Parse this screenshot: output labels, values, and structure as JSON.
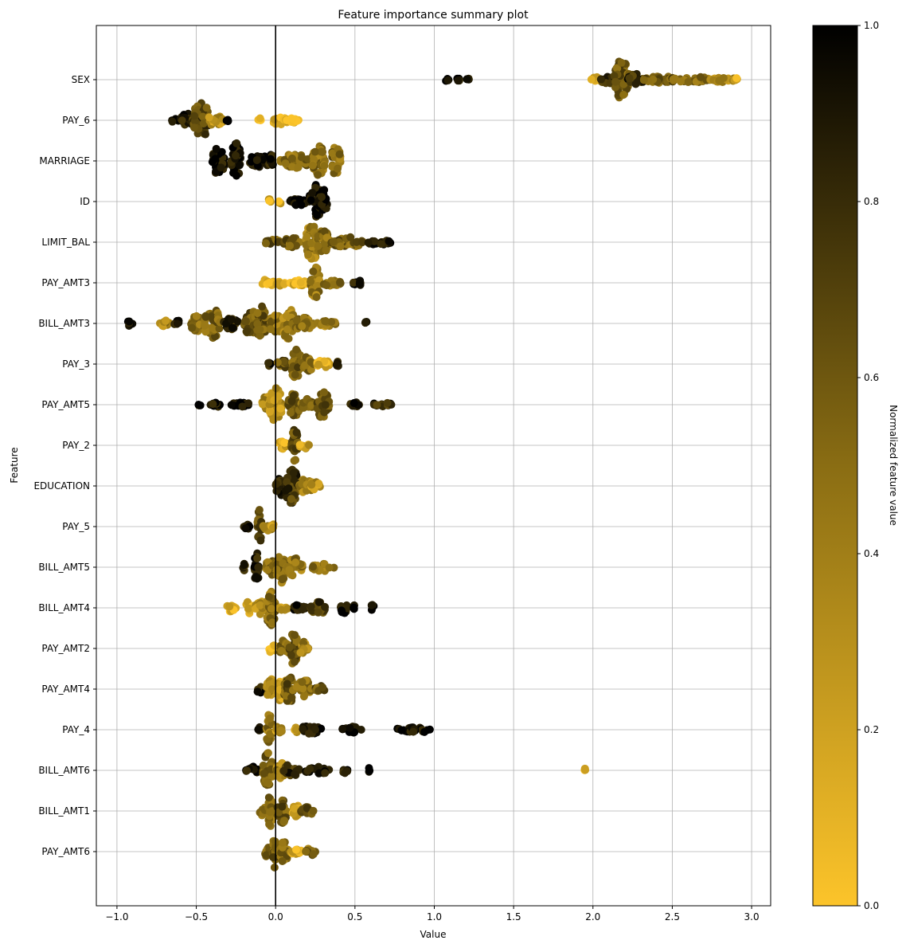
{
  "chart_data": {
    "type": "scatter",
    "subtype": "beeswarm",
    "title": "Feature importance summary plot",
    "xlabel": "Value",
    "ylabel": "Feature",
    "xlim": [
      -1.13,
      3.12
    ],
    "xticks": [
      -1.0,
      -0.5,
      0.0,
      0.5,
      1.0,
      1.5,
      2.0,
      2.5,
      3.0
    ],
    "xtick_labels": [
      "−1.0",
      "−0.5",
      "0.0",
      "0.5",
      "1.0",
      "1.5",
      "2.0",
      "2.5",
      "3.0"
    ],
    "grid": true,
    "zero_line": 0.0,
    "colorbar": {
      "label": "Normalized feature value",
      "range": [
        0.0,
        1.0
      ],
      "ticks": [
        0.0,
        0.2,
        0.4,
        0.6,
        0.8,
        1.0
      ],
      "tick_labels": [
        "0.0",
        "0.2",
        "0.4",
        "0.6",
        "0.8",
        "1.0"
      ],
      "low_color": "#fcc42a",
      "mid_color": "#8a6d13",
      "high_color": "#000000"
    },
    "features": [
      {
        "name": "SEX",
        "clusters": [
          {
            "x": 1.08,
            "c": 0.95,
            "w": 0.01,
            "h": 0.1
          },
          {
            "x": 1.15,
            "c": 0.95,
            "w": 0.01,
            "h": 0.1
          },
          {
            "x": 1.21,
            "c": 0.95,
            "w": 0.01,
            "h": 0.1
          },
          {
            "x": 2.02,
            "c": 0.2,
            "w": 0.03,
            "h": 0.15
          },
          {
            "x": 2.1,
            "c": 0.8,
            "w": 0.05,
            "h": 0.25
          },
          {
            "x": 2.18,
            "c": 0.6,
            "w": 0.05,
            "h": 0.95
          },
          {
            "x": 2.28,
            "c": 0.8,
            "w": 0.06,
            "h": 0.3
          },
          {
            "x": 2.42,
            "c": 0.6,
            "w": 0.1,
            "h": 0.18
          },
          {
            "x": 2.62,
            "c": 0.5,
            "w": 0.12,
            "h": 0.15
          },
          {
            "x": 2.82,
            "c": 0.3,
            "w": 0.08,
            "h": 0.12
          },
          {
            "x": 2.9,
            "c": 0.1,
            "w": 0.01,
            "h": 0.1
          }
        ]
      },
      {
        "name": "PAY_6",
        "clusters": [
          {
            "x": -0.62,
            "c": 0.95,
            "w": 0.04,
            "h": 0.12
          },
          {
            "x": -0.55,
            "c": 0.9,
            "w": 0.05,
            "h": 0.35
          },
          {
            "x": -0.47,
            "c": 0.7,
            "w": 0.05,
            "h": 0.9
          },
          {
            "x": -0.38,
            "c": 0.3,
            "w": 0.05,
            "h": 0.25
          },
          {
            "x": -0.3,
            "c": 0.95,
            "w": 0.01,
            "h": 0.1
          },
          {
            "x": -0.1,
            "c": 0.1,
            "w": 0.01,
            "h": 0.1
          },
          {
            "x": 0.03,
            "c": 0.15,
            "w": 0.05,
            "h": 0.25
          },
          {
            "x": 0.11,
            "c": 0.1,
            "w": 0.04,
            "h": 0.12
          }
        ]
      },
      {
        "name": "MARRIAGE",
        "clusters": [
          {
            "x": -0.36,
            "c": 0.95,
            "w": 0.04,
            "h": 0.7
          },
          {
            "x": -0.25,
            "c": 0.95,
            "w": 0.03,
            "h": 0.9
          },
          {
            "x": -0.1,
            "c": 0.95,
            "w": 0.07,
            "h": 0.3
          },
          {
            "x": -0.03,
            "c": 0.9,
            "w": 0.02,
            "h": 0.3
          },
          {
            "x": 0.13,
            "c": 0.5,
            "w": 0.1,
            "h": 0.35
          },
          {
            "x": 0.27,
            "c": 0.5,
            "w": 0.04,
            "h": 0.75
          },
          {
            "x": 0.38,
            "c": 0.5,
            "w": 0.03,
            "h": 0.7
          }
        ]
      },
      {
        "name": "ID",
        "clusters": [
          {
            "x": -0.04,
            "c": 0.15,
            "w": 0.01,
            "h": 0.12
          },
          {
            "x": 0.03,
            "c": 0.15,
            "w": 0.01,
            "h": 0.12
          },
          {
            "x": 0.14,
            "c": 0.95,
            "w": 0.05,
            "h": 0.2
          },
          {
            "x": 0.25,
            "c": 0.95,
            "w": 0.04,
            "h": 0.85
          },
          {
            "x": 0.3,
            "c": 0.95,
            "w": 0.03,
            "h": 0.6
          }
        ]
      },
      {
        "name": "LIMIT_BAL",
        "clusters": [
          {
            "x": -0.02,
            "c": 0.6,
            "w": 0.05,
            "h": 0.15
          },
          {
            "x": 0.1,
            "c": 0.6,
            "w": 0.05,
            "h": 0.25
          },
          {
            "x": 0.23,
            "c": 0.4,
            "w": 0.04,
            "h": 0.9
          },
          {
            "x": 0.3,
            "c": 0.5,
            "w": 0.04,
            "h": 0.6
          },
          {
            "x": 0.45,
            "c": 0.55,
            "w": 0.1,
            "h": 0.25
          },
          {
            "x": 0.65,
            "c": 0.95,
            "w": 0.08,
            "h": 0.12
          }
        ]
      },
      {
        "name": "PAY_AMT3",
        "clusters": [
          {
            "x": -0.05,
            "c": 0.1,
            "w": 0.04,
            "h": 0.2
          },
          {
            "x": 0.03,
            "c": 0.15,
            "w": 0.03,
            "h": 0.15
          },
          {
            "x": 0.14,
            "c": 0.1,
            "w": 0.06,
            "h": 0.15
          },
          {
            "x": 0.25,
            "c": 0.45,
            "w": 0.03,
            "h": 0.8
          },
          {
            "x": 0.35,
            "c": 0.55,
            "w": 0.06,
            "h": 0.15
          },
          {
            "x": 0.52,
            "c": 0.9,
            "w": 0.04,
            "h": 0.12
          }
        ]
      },
      {
        "name": "BILL_AMT3",
        "clusters": [
          {
            "x": -0.92,
            "c": 0.95,
            "w": 0.02,
            "h": 0.15
          },
          {
            "x": -0.7,
            "c": 0.4,
            "w": 0.03,
            "h": 0.15
          },
          {
            "x": -0.62,
            "c": 0.9,
            "w": 0.02,
            "h": 0.15
          },
          {
            "x": -0.5,
            "c": 0.5,
            "w": 0.04,
            "h": 0.4
          },
          {
            "x": -0.4,
            "c": 0.55,
            "w": 0.05,
            "h": 0.8
          },
          {
            "x": -0.28,
            "c": 0.8,
            "w": 0.05,
            "h": 0.3
          },
          {
            "x": -0.15,
            "c": 0.6,
            "w": 0.05,
            "h": 0.6
          },
          {
            "x": -0.09,
            "c": 0.6,
            "w": 0.03,
            "h": 0.9
          },
          {
            "x": 0.0,
            "c": 0.45,
            "w": 0.04,
            "h": 0.5
          },
          {
            "x": 0.08,
            "c": 0.4,
            "w": 0.04,
            "h": 0.75
          },
          {
            "x": 0.17,
            "c": 0.5,
            "w": 0.07,
            "h": 0.3
          },
          {
            "x": 0.32,
            "c": 0.4,
            "w": 0.06,
            "h": 0.15
          },
          {
            "x": 0.57,
            "c": 0.9,
            "w": 0.005,
            "h": 0.1
          }
        ]
      },
      {
        "name": "PAY_3",
        "clusters": [
          {
            "x": -0.04,
            "c": 0.9,
            "w": 0.01,
            "h": 0.1
          },
          {
            "x": 0.04,
            "c": 0.6,
            "w": 0.03,
            "h": 0.25
          },
          {
            "x": 0.13,
            "c": 0.6,
            "w": 0.03,
            "h": 0.9
          },
          {
            "x": 0.2,
            "c": 0.5,
            "w": 0.04,
            "h": 0.35
          },
          {
            "x": 0.3,
            "c": 0.15,
            "w": 0.04,
            "h": 0.2
          },
          {
            "x": 0.38,
            "c": 0.8,
            "w": 0.02,
            "h": 0.15
          }
        ]
      },
      {
        "name": "PAY_AMT5",
        "clusters": [
          {
            "x": -0.48,
            "c": 0.95,
            "w": 0.01,
            "h": 0.12
          },
          {
            "x": -0.38,
            "c": 0.95,
            "w": 0.03,
            "h": 0.15
          },
          {
            "x": -0.22,
            "c": 0.95,
            "w": 0.06,
            "h": 0.12
          },
          {
            "x": -0.05,
            "c": 0.35,
            "w": 0.04,
            "h": 0.45
          },
          {
            "x": 0.0,
            "c": 0.3,
            "w": 0.04,
            "h": 0.9
          },
          {
            "x": 0.12,
            "c": 0.6,
            "w": 0.04,
            "h": 0.6
          },
          {
            "x": 0.2,
            "c": 0.55,
            "w": 0.04,
            "h": 0.3
          },
          {
            "x": 0.3,
            "c": 0.6,
            "w": 0.04,
            "h": 0.7
          },
          {
            "x": 0.5,
            "c": 0.9,
            "w": 0.03,
            "h": 0.12
          },
          {
            "x": 0.67,
            "c": 0.8,
            "w": 0.06,
            "h": 0.12
          }
        ]
      },
      {
        "name": "PAY_2",
        "clusters": [
          {
            "x": 0.04,
            "c": 0.15,
            "w": 0.04,
            "h": 0.2
          },
          {
            "x": 0.12,
            "c": 0.65,
            "w": 0.02,
            "h": 0.9
          },
          {
            "x": 0.18,
            "c": 0.2,
            "w": 0.03,
            "h": 0.2
          }
        ]
      },
      {
        "name": "EDUCATION",
        "clusters": [
          {
            "x": 0.04,
            "c": 0.8,
            "w": 0.04,
            "h": 0.5
          },
          {
            "x": 0.1,
            "c": 0.75,
            "w": 0.04,
            "h": 0.9
          },
          {
            "x": 0.2,
            "c": 0.4,
            "w": 0.05,
            "h": 0.4
          },
          {
            "x": 0.25,
            "c": 0.3,
            "w": 0.03,
            "h": 0.2
          }
        ]
      },
      {
        "name": "PAY_5",
        "clusters": [
          {
            "x": -0.18,
            "c": 0.9,
            "w": 0.02,
            "h": 0.2
          },
          {
            "x": -0.1,
            "c": 0.7,
            "w": 0.015,
            "h": 0.9
          },
          {
            "x": -0.05,
            "c": 0.5,
            "w": 0.03,
            "h": 0.25
          },
          {
            "x": -0.02,
            "c": 0.15,
            "w": 0.01,
            "h": 0.15
          }
        ]
      },
      {
        "name": "BILL_AMT5",
        "clusters": [
          {
            "x": -0.2,
            "c": 0.8,
            "w": 0.01,
            "h": 0.2
          },
          {
            "x": -0.12,
            "c": 0.85,
            "w": 0.015,
            "h": 0.85
          },
          {
            "x": -0.03,
            "c": 0.5,
            "w": 0.03,
            "h": 0.5
          },
          {
            "x": 0.03,
            "c": 0.5,
            "w": 0.03,
            "h": 0.8
          },
          {
            "x": 0.12,
            "c": 0.45,
            "w": 0.05,
            "h": 0.45
          },
          {
            "x": 0.3,
            "c": 0.5,
            "w": 0.07,
            "h": 0.2
          }
        ]
      },
      {
        "name": "BILL_AMT4",
        "clusters": [
          {
            "x": -0.28,
            "c": 0.1,
            "w": 0.03,
            "h": 0.2
          },
          {
            "x": -0.17,
            "c": 0.15,
            "w": 0.03,
            "h": 0.3
          },
          {
            "x": -0.1,
            "c": 0.3,
            "w": 0.03,
            "h": 0.4
          },
          {
            "x": -0.03,
            "c": 0.5,
            "w": 0.03,
            "h": 0.9
          },
          {
            "x": 0.05,
            "c": 0.2,
            "w": 0.03,
            "h": 0.12
          },
          {
            "x": 0.15,
            "c": 0.9,
            "w": 0.04,
            "h": 0.2
          },
          {
            "x": 0.27,
            "c": 0.75,
            "w": 0.05,
            "h": 0.3
          },
          {
            "x": 0.43,
            "c": 0.95,
            "w": 0.02,
            "h": 0.3
          },
          {
            "x": 0.5,
            "c": 0.95,
            "w": 0.01,
            "h": 0.15
          },
          {
            "x": 0.61,
            "c": 0.95,
            "w": 0.01,
            "h": 0.15
          }
        ]
      },
      {
        "name": "PAY_AMT2",
        "clusters": [
          {
            "x": -0.02,
            "c": 0.1,
            "w": 0.02,
            "h": 0.25
          },
          {
            "x": 0.05,
            "c": 0.55,
            "w": 0.03,
            "h": 0.4
          },
          {
            "x": 0.11,
            "c": 0.6,
            "w": 0.03,
            "h": 0.8
          },
          {
            "x": 0.18,
            "c": 0.4,
            "w": 0.03,
            "h": 0.35
          }
        ]
      },
      {
        "name": "PAY_AMT4",
        "clusters": [
          {
            "x": -0.1,
            "c": 0.9,
            "w": 0.02,
            "h": 0.2
          },
          {
            "x": -0.03,
            "c": 0.4,
            "w": 0.03,
            "h": 0.5
          },
          {
            "x": 0.04,
            "c": 0.2,
            "w": 0.03,
            "h": 0.7
          },
          {
            "x": 0.08,
            "c": 0.6,
            "w": 0.03,
            "h": 0.8
          },
          {
            "x": 0.18,
            "c": 0.5,
            "w": 0.05,
            "h": 0.45
          },
          {
            "x": 0.28,
            "c": 0.6,
            "w": 0.03,
            "h": 0.2
          }
        ]
      },
      {
        "name": "PAY_4",
        "clusters": [
          {
            "x": -0.1,
            "c": 0.95,
            "w": 0.01,
            "h": 0.15
          },
          {
            "x": -0.04,
            "c": 0.5,
            "w": 0.02,
            "h": 0.8
          },
          {
            "x": 0.02,
            "c": 0.3,
            "w": 0.02,
            "h": 0.2
          },
          {
            "x": 0.14,
            "c": 0.2,
            "w": 0.02,
            "h": 0.15
          },
          {
            "x": 0.22,
            "c": 0.95,
            "w": 0.07,
            "h": 0.2
          },
          {
            "x": 0.48,
            "c": 0.95,
            "w": 0.06,
            "h": 0.18
          },
          {
            "x": 0.87,
            "c": 0.95,
            "w": 0.11,
            "h": 0.15
          }
        ]
      },
      {
        "name": "BILL_AMT6",
        "clusters": [
          {
            "x": -0.15,
            "c": 0.9,
            "w": 0.04,
            "h": 0.2
          },
          {
            "x": -0.05,
            "c": 0.55,
            "w": 0.03,
            "h": 0.9
          },
          {
            "x": 0.03,
            "c": 0.4,
            "w": 0.03,
            "h": 0.4
          },
          {
            "x": 0.1,
            "c": 0.8,
            "w": 0.05,
            "h": 0.3
          },
          {
            "x": 0.26,
            "c": 0.9,
            "w": 0.08,
            "h": 0.18
          },
          {
            "x": 0.44,
            "c": 0.9,
            "w": 0.02,
            "h": 0.15
          },
          {
            "x": 0.59,
            "c": 0.95,
            "w": 0.005,
            "h": 0.12
          },
          {
            "x": 1.95,
            "c": 0.12,
            "w": 0.005,
            "h": 0.12
          }
        ]
      },
      {
        "name": "BILL_AMT1",
        "clusters": [
          {
            "x": -0.08,
            "c": 0.5,
            "w": 0.02,
            "h": 0.25
          },
          {
            "x": -0.03,
            "c": 0.5,
            "w": 0.02,
            "h": 0.85
          },
          {
            "x": 0.04,
            "c": 0.6,
            "w": 0.03,
            "h": 0.6
          },
          {
            "x": 0.13,
            "c": 0.2,
            "w": 0.03,
            "h": 0.3
          },
          {
            "x": 0.2,
            "c": 0.6,
            "w": 0.04,
            "h": 0.2
          }
        ]
      },
      {
        "name": "PAY_AMT6",
        "clusters": [
          {
            "x": -0.05,
            "c": 0.5,
            "w": 0.02,
            "h": 0.3
          },
          {
            "x": -0.01,
            "c": 0.6,
            "w": 0.01,
            "h": 0.85
          },
          {
            "x": 0.05,
            "c": 0.5,
            "w": 0.03,
            "h": 0.5
          },
          {
            "x": 0.13,
            "c": 0.15,
            "w": 0.04,
            "h": 0.15
          },
          {
            "x": 0.22,
            "c": 0.5,
            "w": 0.03,
            "h": 0.2
          }
        ]
      }
    ]
  }
}
